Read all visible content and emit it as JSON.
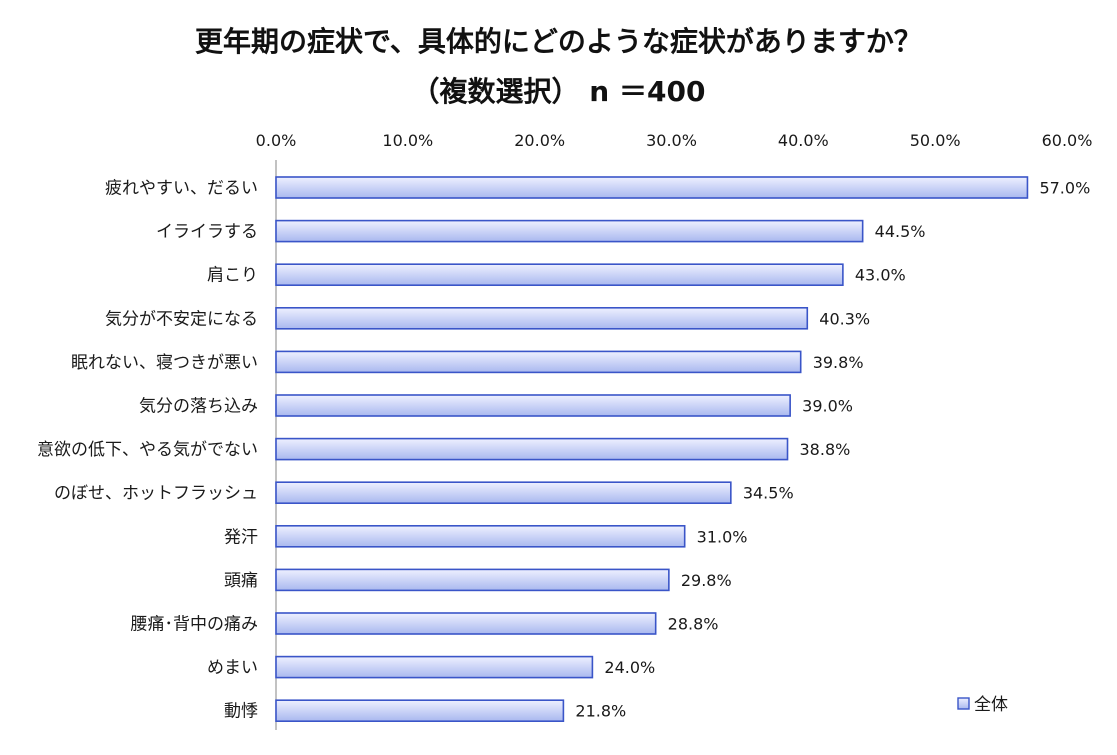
{
  "chart_data": {
    "type": "bar",
    "orientation": "horizontal",
    "title": "更年期の症状で、具体的にどのような症状がありますか？",
    "subtitle": "（複数選択） n ＝400",
    "categories": [
      "疲れやすい、だるい",
      "イライラする",
      "肩こり",
      "気分が不安定になる",
      "眠れない、寝つきが悪い",
      "気分の落ち込み",
      "意欲の低下、やる気がでない",
      "のぼせ、ホットフラッシュ",
      "発汗",
      "頭痛",
      "腰痛･背中の痛み",
      "めまい",
      "動悸"
    ],
    "series": [
      {
        "name": "全体",
        "values": [
          57.0,
          44.5,
          43.0,
          40.3,
          39.8,
          39.0,
          38.8,
          34.5,
          31.0,
          29.8,
          28.8,
          24.0,
          21.8
        ],
        "labels": [
          "57.0%",
          "44.5%",
          "43.0%",
          "40.3%",
          "39.8%",
          "39.0%",
          "38.8%",
          "34.5%",
          "31.0%",
          "29.8%",
          "28.8%",
          "24.0%",
          "21.8%"
        ]
      }
    ],
    "x_ticks": [
      "0.0%",
      "10.0%",
      "20.0%",
      "30.0%",
      "40.0%",
      "50.0%",
      "60.0%"
    ],
    "xlim": [
      0,
      60
    ],
    "axis_position": "top",
    "grid": false,
    "legend_position": "bottom-right",
    "colors": {
      "bar_fill_light": "#eef0ff",
      "bar_fill_dark": "#a9b8ef",
      "bar_stroke": "#3a55c8",
      "axis": "#9a9a9a"
    }
  }
}
